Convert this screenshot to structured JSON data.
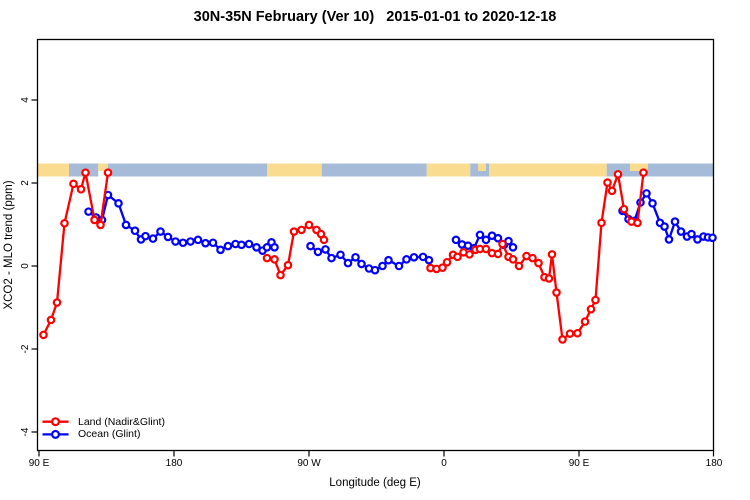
{
  "chart_data": {
    "type": "line",
    "title": "30N-35N February (Ver 10)   2015-01-01 to 2020-12-18",
    "xlabel": "Longitude (deg E)",
    "ylabel": "XCO2 - MLO trend (ppm)",
    "x_axis_note": "longitude wraps over 450 degrees: 90E to 180 to 90W to 0 to 90E to 180",
    "xlim_offsets_deg": [
      -1,
      450.3
    ],
    "ylim": [
      -4.45,
      5.45
    ],
    "grid": false,
    "x_ticks": [
      {
        "label": "90 E",
        "offset_deg": 0
      },
      {
        "label": "180",
        "offset_deg": 90
      },
      {
        "label": "90 W",
        "offset_deg": 180
      },
      {
        "label": "0",
        "offset_deg": 270
      },
      {
        "label": "90 E",
        "offset_deg": 360
      },
      {
        "label": "180",
        "offset_deg": 450
      }
    ],
    "y_ticks": [
      {
        "label": "4",
        "value": 4
      },
      {
        "label": "2",
        "value": 2
      },
      {
        "label": "0",
        "value": 0
      },
      {
        "label": "-2",
        "value": -2
      },
      {
        "label": "-4",
        "value": -4
      }
    ],
    "legend": {
      "position": "bottom-left",
      "entries": [
        {
          "label": "Land (Nadir&Glint)",
          "color": "#ff0000"
        },
        {
          "label": "Ocean (Glint)",
          "color": "#0000ff"
        }
      ]
    },
    "series": [
      {
        "name": "Land (Nadir&Glint)",
        "color": "#ff0000",
        "marker": "open-circle",
        "segments": [
          [
            [
              3,
              -1.66
            ],
            [
              8,
              -1.3
            ],
            [
              12,
              -0.88
            ],
            [
              17,
              1.03
            ],
            [
              23,
              1.98
            ],
            [
              28,
              1.85
            ],
            [
              31,
              2.25
            ],
            [
              37,
              1.11
            ],
            [
              41,
              0.99
            ],
            [
              46,
              2.25
            ]
          ],
          [
            [
              152,
              0.19
            ],
            [
              157,
              0.16
            ],
            [
              161,
              -0.22
            ],
            [
              166,
              0.02
            ],
            [
              170,
              0.83
            ],
            [
              175,
              0.87
            ],
            [
              180,
              0.99
            ],
            [
              185,
              0.87
            ],
            [
              188,
              0.77
            ],
            [
              190,
              0.63
            ]
          ],
          [
            [
              261,
              -0.05
            ],
            [
              265,
              -0.07
            ],
            [
              269,
              -0.04
            ],
            [
              272,
              0.09
            ],
            [
              276,
              0.27
            ],
            [
              279,
              0.22
            ],
            [
              283,
              0.33
            ],
            [
              287,
              0.28
            ],
            [
              291,
              0.39
            ],
            [
              294,
              0.41
            ],
            [
              298,
              0.41
            ],
            [
              302,
              0.31
            ],
            [
              306,
              0.29
            ],
            [
              309,
              0.53
            ],
            [
              313,
              0.22
            ],
            [
              316,
              0.16
            ],
            [
              320,
              0.0
            ],
            [
              325,
              0.24
            ],
            [
              329,
              0.19
            ],
            [
              333,
              0.07
            ],
            [
              337,
              -0.27
            ],
            [
              340,
              -0.3
            ],
            [
              342,
              0.28
            ],
            [
              345,
              -0.64
            ],
            [
              349,
              -1.77
            ],
            [
              354,
              -1.63
            ],
            [
              359,
              -1.62
            ],
            [
              364,
              -1.34
            ],
            [
              368,
              -1.04
            ],
            [
              371,
              -0.82
            ],
            [
              375,
              1.04
            ],
            [
              379,
              2.01
            ],
            [
              382,
              1.81
            ],
            [
              386,
              2.21
            ],
            [
              390,
              1.37
            ],
            [
              395,
              1.07
            ],
            [
              399,
              1.04
            ],
            [
              403,
              2.25
            ]
          ]
        ]
      },
      {
        "name": "Ocean (Glint)",
        "color": "#0000ff",
        "marker": "open-circle",
        "segments": [
          [
            [
              33,
              1.31
            ],
            [
              38,
              1.17
            ],
            [
              42,
              1.11
            ],
            [
              46,
              1.71
            ],
            [
              53,
              1.51
            ],
            [
              58,
              0.99
            ],
            [
              64,
              0.85
            ],
            [
              68,
              0.64
            ],
            [
              71,
              0.72
            ],
            [
              76,
              0.66
            ],
            [
              81,
              0.83
            ],
            [
              86,
              0.7
            ],
            [
              91,
              0.59
            ],
            [
              96,
              0.56
            ],
            [
              101,
              0.59
            ],
            [
              106,
              0.63
            ],
            [
              111,
              0.55
            ],
            [
              116,
              0.56
            ],
            [
              121,
              0.39
            ],
            [
              126,
              0.48
            ],
            [
              131,
              0.53
            ],
            [
              135,
              0.51
            ],
            [
              140,
              0.53
            ],
            [
              145,
              0.45
            ],
            [
              149,
              0.37
            ],
            [
              152,
              0.45
            ],
            [
              155,
              0.57
            ],
            [
              157,
              0.45
            ]
          ],
          [
            [
              181,
              0.48
            ],
            [
              186,
              0.34
            ],
            [
              191,
              0.4
            ],
            [
              195,
              0.19
            ],
            [
              201,
              0.27
            ],
            [
              206,
              0.07
            ],
            [
              211,
              0.21
            ],
            [
              215,
              0.05
            ],
            [
              220,
              -0.06
            ],
            [
              224,
              -0.1
            ],
            [
              229,
              0.0
            ],
            [
              233,
              0.14
            ],
            [
              240,
              0.0
            ],
            [
              245,
              0.16
            ],
            [
              250,
              0.21
            ],
            [
              256,
              0.22
            ],
            [
              260,
              0.14
            ]
          ],
          [
            [
              278,
              0.63
            ],
            [
              282,
              0.52
            ],
            [
              286,
              0.49
            ],
            [
              290,
              0.43
            ],
            [
              294,
              0.75
            ],
            [
              298,
              0.63
            ],
            [
              302,
              0.73
            ],
            [
              306,
              0.67
            ],
            [
              310,
              0.51
            ],
            [
              313,
              0.6
            ],
            [
              316,
              0.45
            ]
          ],
          [
            [
              389,
              1.33
            ],
            [
              393,
              1.13
            ],
            [
              397,
              1.09
            ],
            [
              401,
              1.53
            ],
            [
              405,
              1.75
            ],
            [
              409,
              1.51
            ],
            [
              414,
              1.04
            ],
            [
              417,
              0.95
            ],
            [
              420,
              0.64
            ],
            [
              424,
              1.07
            ],
            [
              428,
              0.83
            ],
            [
              432,
              0.71
            ],
            [
              435,
              0.77
            ],
            [
              439,
              0.64
            ],
            [
              443,
              0.71
            ],
            [
              446,
              0.69
            ],
            [
              449,
              0.68
            ]
          ]
        ]
      }
    ],
    "map_band": {
      "description": "30N-35N latitude strip map drawn as horizontal band near y=2.3",
      "land_color": "#F9DC8F",
      "ocean_color": "#A6BBD7",
      "value_top": 2.47,
      "value_bottom": 2.15,
      "segments": [
        {
          "type": "land",
          "from": -1,
          "to": 20
        },
        {
          "type": "ocean",
          "from": 20,
          "to": 39.5
        },
        {
          "type": "ocean",
          "from": 46,
          "to": 152
        },
        {
          "type": "land",
          "from": 152,
          "to": 188.5
        },
        {
          "type": "ocean",
          "from": 188.5,
          "to": 258.5
        },
        {
          "type": "land",
          "from": 258.5,
          "to": 287.5
        },
        {
          "type": "ocean",
          "from": 287.5,
          "to": 300
        },
        {
          "type": "land",
          "from": 300,
          "to": 378.5
        },
        {
          "type": "ocean",
          "from": 378.5,
          "to": 450.3
        },
        {
          "type": "island",
          "from": 39.5,
          "to": 46
        },
        {
          "type": "island",
          "from": 292.7,
          "to": 298
        },
        {
          "type": "island",
          "from": 394,
          "to": 406
        }
      ]
    }
  }
}
